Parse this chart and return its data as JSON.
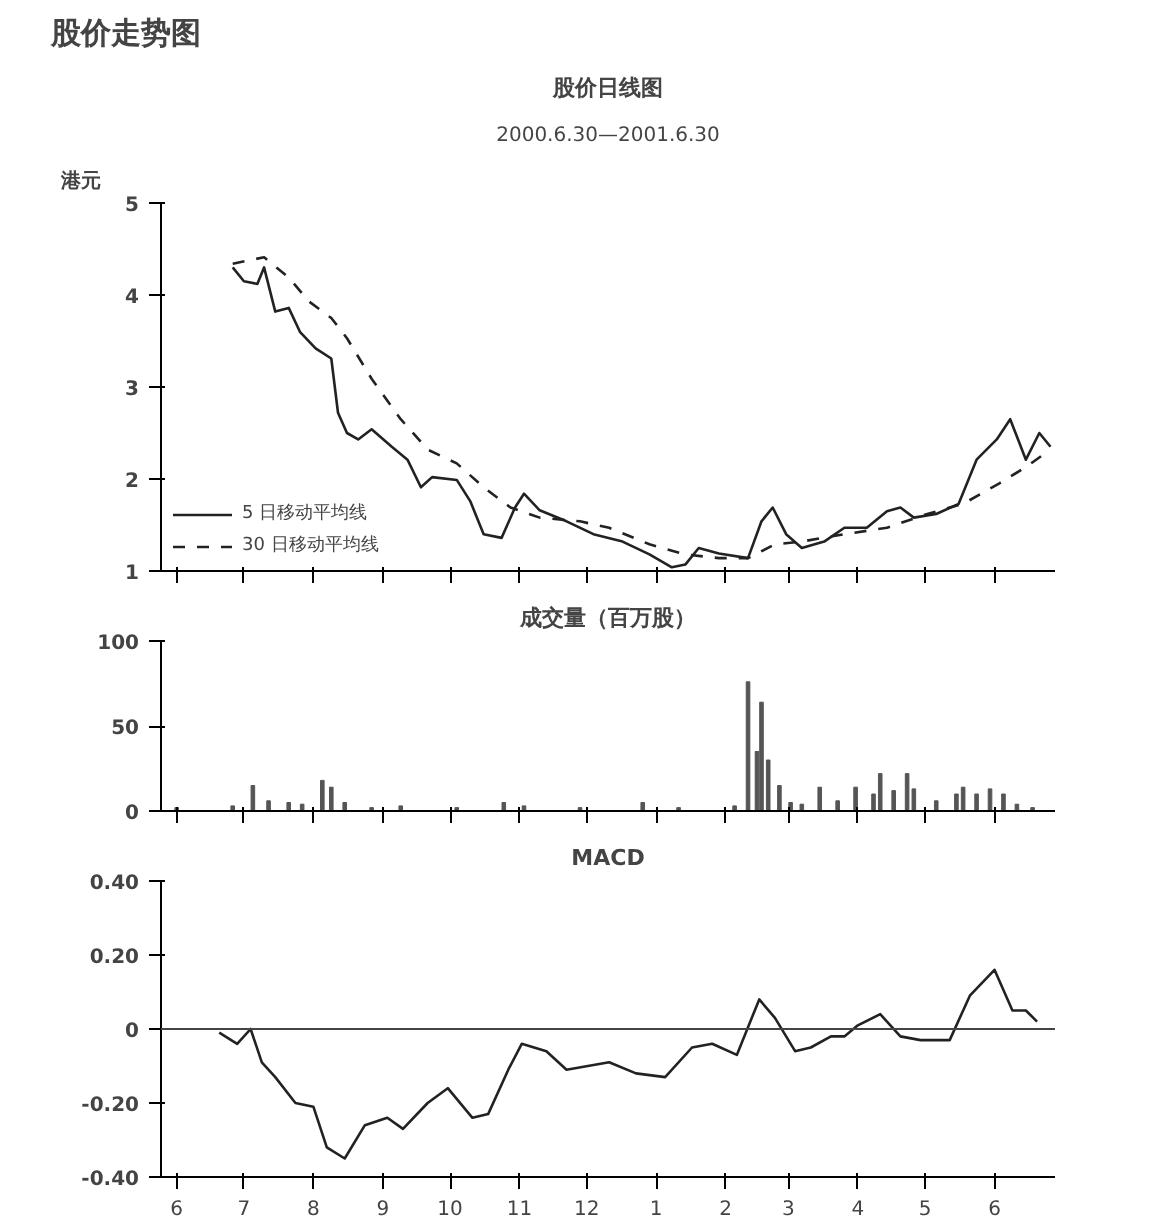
{
  "chart_data": [
    {
      "type": "line",
      "title": "股价日线图",
      "subtitle": "2000.6.30—2001.6.30",
      "ylabel": "港元",
      "annotations": [
        "股价走势图"
      ],
      "xlim": [
        "2000-05-25",
        "2001-06-28"
      ],
      "xticks": [
        "2000-06-01",
        "2000-07-01",
        "2000-08-01",
        "2000-09-01",
        "2000-10-01",
        "2000-11-01",
        "2000-12-01",
        "2001-01-01",
        "2001-02-01",
        "2001-03-01",
        "2001-04-01",
        "2001-05-01",
        "2001-06-01"
      ],
      "ylim": [
        1,
        5
      ],
      "yticks": [
        1,
        2,
        3,
        4,
        5
      ],
      "tick_labels": "y",
      "grid": false,
      "legend": "bottom left",
      "marker": "none",
      "series": [
        {
          "name": "5 日移动平均线",
          "color": "#222222",
          "line_style": "solid",
          "x": [
            "2000-06-26",
            "2000-07-01",
            "2000-07-07",
            "2000-07-10",
            "2000-07-15",
            "2000-07-21",
            "2000-07-26",
            "2000-08-02",
            "2000-08-09",
            "2000-08-12",
            "2000-08-16",
            "2000-08-21",
            "2000-08-27",
            "2000-09-05",
            "2000-09-12",
            "2000-09-18",
            "2000-09-23",
            "2000-10-04",
            "2000-10-10",
            "2000-10-16",
            "2000-10-24",
            "2000-10-30",
            "2000-11-03",
            "2000-11-10",
            "2000-11-22",
            "2000-12-04",
            "2000-12-17",
            "2000-12-29",
            "2001-01-08",
            "2001-01-14",
            "2001-01-20",
            "2001-01-29",
            "2001-02-11",
            "2001-02-17",
            "2001-02-22",
            "2001-02-28",
            "2001-03-07",
            "2001-03-17",
            "2001-03-26",
            "2001-04-05",
            "2001-04-14",
            "2001-04-20",
            "2001-04-26",
            "2001-05-06",
            "2001-05-16",
            "2001-05-24",
            "2001-06-02",
            "2001-06-08",
            "2001-06-15",
            "2001-06-21",
            "2001-06-26"
          ],
          "values": [
            4.3,
            4.15,
            4.12,
            4.3,
            3.82,
            3.86,
            3.6,
            3.42,
            3.31,
            2.72,
            2.5,
            2.43,
            2.54,
            2.35,
            2.21,
            1.91,
            2.02,
            1.99,
            1.76,
            1.4,
            1.36,
            1.69,
            1.84,
            1.66,
            1.54,
            1.4,
            1.32,
            1.18,
            1.04,
            1.07,
            1.25,
            1.19,
            1.14,
            1.54,
            1.69,
            1.4,
            1.25,
            1.32,
            1.47,
            1.47,
            1.65,
            1.69,
            1.58,
            1.62,
            1.73,
            2.21,
            2.43,
            2.65,
            2.21,
            2.5,
            2.35
          ]
        },
        {
          "name": "30 日移动平均线",
          "color": "#222222",
          "line_style": "dashed",
          "x": [
            "2000-06-26",
            "2000-07-10",
            "2000-07-21",
            "2000-07-30",
            "2000-08-09",
            "2000-08-16",
            "2000-08-27",
            "2000-09-09",
            "2000-09-21",
            "2000-10-04",
            "2000-10-16",
            "2000-10-28",
            "2000-11-10",
            "2000-11-28",
            "2000-12-11",
            "2000-12-29",
            "2001-01-14",
            "2001-01-29",
            "2001-02-11",
            "2001-02-23",
            "2001-03-07",
            "2001-03-26",
            "2001-04-14",
            "2001-05-02",
            "2001-05-18",
            "2001-06-03",
            "2001-06-15",
            "2001-06-26"
          ],
          "values": [
            4.34,
            4.41,
            4.19,
            3.93,
            3.75,
            3.53,
            3.09,
            2.65,
            2.32,
            2.17,
            1.91,
            1.69,
            1.58,
            1.54,
            1.47,
            1.29,
            1.18,
            1.14,
            1.14,
            1.29,
            1.32,
            1.4,
            1.47,
            1.62,
            1.73,
            1.95,
            2.13,
            2.32
          ]
        }
      ]
    },
    {
      "type": "bar",
      "title": "成交量（百万股）",
      "xlim": [
        "2000-05-25",
        "2001-06-28"
      ],
      "xticks": [
        "2000-06-01",
        "2000-07-01",
        "2000-08-01",
        "2000-09-01",
        "2000-10-01",
        "2000-11-01",
        "2000-12-01",
        "2001-01-01",
        "2001-02-01",
        "2001-03-01",
        "2001-04-01",
        "2001-05-01",
        "2001-06-01"
      ],
      "ylim": [
        0,
        100
      ],
      "yticks": [
        0,
        50,
        100
      ],
      "tick_labels": "y",
      "grid": false,
      "color": "#555555",
      "x": [
        "2000-06-01",
        "2000-06-26",
        "2000-07-05",
        "2000-07-12",
        "2000-07-21",
        "2000-07-27",
        "2000-08-05",
        "2000-08-09",
        "2000-08-15",
        "2000-08-27",
        "2000-09-09",
        "2000-10-04",
        "2000-10-25",
        "2000-11-03",
        "2000-11-28",
        "2000-12-26",
        "2001-01-11",
        "2001-02-05",
        "2001-02-11",
        "2001-02-15",
        "2001-02-17",
        "2001-02-20",
        "2001-02-25",
        "2001-03-02",
        "2001-03-07",
        "2001-03-15",
        "2001-03-23",
        "2001-03-31",
        "2001-04-08",
        "2001-04-11",
        "2001-04-17",
        "2001-04-23",
        "2001-04-26",
        "2001-05-06",
        "2001-05-15",
        "2001-05-18",
        "2001-05-24",
        "2001-05-30",
        "2001-06-05",
        "2001-06-11",
        "2001-06-18"
      ],
      "values": [
        2,
        3,
        15,
        6,
        5,
        4,
        18,
        14,
        5,
        2,
        3,
        2,
        5,
        3,
        2,
        5,
        2,
        3,
        76,
        35,
        64,
        30,
        15,
        5,
        4,
        14,
        6,
        14,
        10,
        22,
        12,
        22,
        13,
        6,
        10,
        14,
        10,
        13,
        10,
        4,
        2
      ]
    },
    {
      "type": "line",
      "title": "MACD",
      "xlim": [
        "2000-05-25",
        "2001-06-28"
      ],
      "ylim": [
        -0.4,
        0.4
      ],
      "yticks": [
        {
          "value": -0.4,
          "label": "-0.40"
        },
        {
          "value": -0.2,
          "label": "-0.20"
        },
        0,
        {
          "value": 0.2,
          "label": "0.20"
        },
        {
          "value": 0.4,
          "label": "0.40"
        }
      ],
      "xticks": [
        {
          "value": "2000-06-01",
          "label": "6"
        },
        {
          "value": "2000-07-01",
          "label": "7"
        },
        {
          "value": "2000-08-01",
          "label": "8"
        },
        {
          "value": "2000-09-01",
          "label": "9"
        },
        {
          "value": "2000-10-01",
          "label": "10"
        },
        {
          "value": "2000-11-01",
          "label": "11"
        },
        {
          "value": "2000-12-01",
          "label": "12"
        },
        {
          "value": "2001-01-01",
          "label": "1"
        },
        {
          "value": "2001-02-01",
          "label": "2"
        },
        {
          "value": "2001-03-01",
          "label": "3"
        },
        {
          "value": "2001-04-01",
          "label": "4"
        },
        {
          "value": "2001-05-01",
          "label": "5"
        },
        {
          "value": "2001-06-01",
          "label": "6"
        }
      ],
      "grid": false,
      "marker": "none",
      "line_style": "solid",
      "ref_lines": [
        {
          "axis": "y",
          "value": 0,
          "color": "#444444"
        }
      ],
      "series": [
        {
          "color": "#222222",
          "x": [
            "2000-06-20",
            "2000-06-28",
            "2000-07-04",
            "2000-07-09",
            "2000-07-15",
            "2000-07-24",
            "2000-08-01",
            "2000-08-07",
            "2000-08-15",
            "2000-08-24",
            "2000-09-03",
            "2000-09-10",
            "2000-09-21",
            "2000-09-30",
            "2000-10-11",
            "2000-10-18",
            "2000-10-27",
            "2000-11-02",
            "2000-11-13",
            "2000-11-22",
            "2000-12-11",
            "2000-12-23",
            "2001-01-05",
            "2001-01-17",
            "2001-01-26",
            "2001-02-06",
            "2001-02-16",
            "2001-02-23",
            "2001-03-04",
            "2001-03-11",
            "2001-03-20",
            "2001-03-26",
            "2001-04-01",
            "2001-04-11",
            "2001-04-20",
            "2001-04-29",
            "2001-05-12",
            "2001-05-21",
            "2001-06-01",
            "2001-06-09",
            "2001-06-15",
            "2001-06-20"
          ],
          "values": [
            -0.01,
            -0.04,
            0,
            -0.09,
            -0.13,
            -0.2,
            -0.21,
            -0.32,
            -0.35,
            -0.26,
            -0.24,
            -0.27,
            -0.2,
            -0.16,
            -0.24,
            -0.23,
            -0.11,
            -0.04,
            -0.06,
            -0.11,
            -0.09,
            -0.12,
            -0.13,
            -0.05,
            -0.04,
            -0.07,
            0.08,
            0.03,
            -0.06,
            -0.05,
            -0.02,
            -0.02,
            0.01,
            0.04,
            -0.02,
            -0.03,
            -0.03,
            0.09,
            0.16,
            0.05,
            0.05,
            0.02
          ]
        }
      ]
    }
  ]
}
